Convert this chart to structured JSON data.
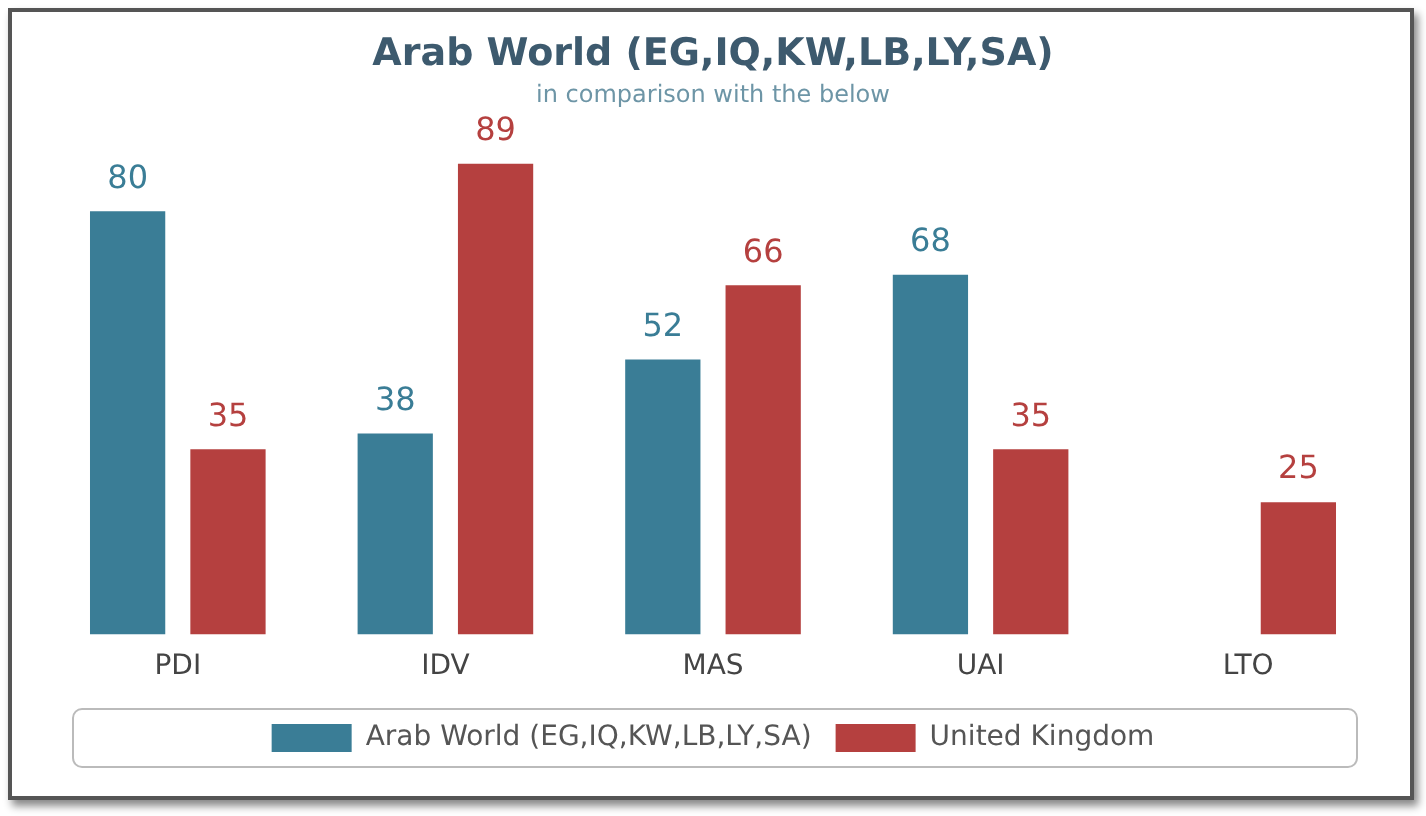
{
  "chart_data": {
    "type": "bar",
    "title": "Arab World (EG,IQ,KW,LB,LY,SA)",
    "subtitle": "in comparison with the below",
    "categories": [
      "PDI",
      "IDV",
      "MAS",
      "UAI",
      "LTO"
    ],
    "series": [
      {
        "name": "Arab World (EG,IQ,KW,LB,LY,SA)",
        "color": "#3a7d96",
        "values": [
          80,
          38,
          52,
          68,
          null
        ]
      },
      {
        "name": "United Kingdom",
        "color": "#b5403f",
        "values": [
          35,
          89,
          66,
          35,
          25
        ]
      }
    ],
    "data_labels": true,
    "grid": false,
    "legend": "bottom"
  }
}
